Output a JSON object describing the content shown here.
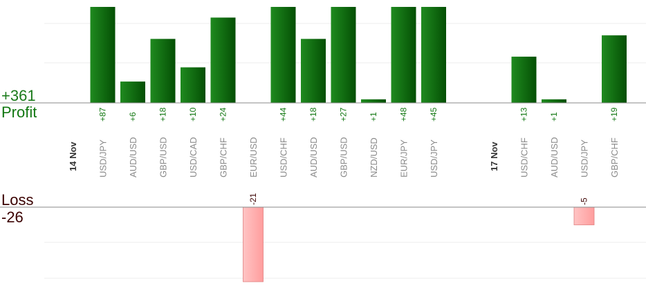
{
  "summary": {
    "profit_total": "+361",
    "profit_label": "Profit",
    "loss_label": "Loss",
    "loss_total": "-26"
  },
  "colors": {
    "profit_bar": "#0b6b0b",
    "profit_text": "#117711",
    "profit_total": "#1a7a1a",
    "loss_bar": "#ffb0b0",
    "loss_bar_stroke": "#e08080",
    "loss_text": "#3a0000",
    "pair_text": "#8a8a8a",
    "date_text": "#333333",
    "axis": "#888888",
    "grid": "#eeeeee"
  },
  "chart_data": {
    "type": "bar",
    "title": "",
    "xlabel": "",
    "ylabel": "",
    "grid": true,
    "categories": [
      {
        "kind": "date",
        "label": "14 Nov"
      },
      {
        "kind": "pair",
        "label": "USD/JPY",
        "profit": 87,
        "profit_label": "+87"
      },
      {
        "kind": "pair",
        "label": "AUD/USD",
        "profit": 6,
        "profit_label": "+6"
      },
      {
        "kind": "pair",
        "label": "GBP/USD",
        "profit": 18,
        "profit_label": "+18"
      },
      {
        "kind": "pair",
        "label": "USD/CAD",
        "profit": 10,
        "profit_label": "+10"
      },
      {
        "kind": "pair",
        "label": "GBP/CHF",
        "profit": 24,
        "profit_label": "+24"
      },
      {
        "kind": "pair",
        "label": "EUR/USD",
        "loss": -21,
        "loss_label": "-21"
      },
      {
        "kind": "pair",
        "label": "USD/CHF",
        "profit": 44,
        "profit_label": "+44"
      },
      {
        "kind": "pair",
        "label": "AUD/USD",
        "profit": 18,
        "profit_label": "+18"
      },
      {
        "kind": "pair",
        "label": "GBP/USD",
        "profit": 27,
        "profit_label": "+27"
      },
      {
        "kind": "pair",
        "label": "NZD/USD",
        "profit": 1,
        "profit_label": "+1"
      },
      {
        "kind": "pair",
        "label": "EUR/JPY",
        "profit": 48,
        "profit_label": "+48"
      },
      {
        "kind": "pair",
        "label": "USD/JPY",
        "profit": 45,
        "profit_label": "+45"
      },
      {
        "kind": "gap"
      },
      {
        "kind": "date",
        "label": "17 Nov"
      },
      {
        "kind": "pair",
        "label": "USD/CHF",
        "profit": 13,
        "profit_label": "+13"
      },
      {
        "kind": "pair",
        "label": "AUD/USD",
        "profit": 1,
        "profit_label": "+1"
      },
      {
        "kind": "pair",
        "label": "USD/JPY",
        "loss": -5,
        "loss_label": "-5"
      },
      {
        "kind": "pair",
        "label": "GBP/CHF",
        "profit": 19,
        "profit_label": "+19"
      }
    ],
    "profit_axis": {
      "ylim": [
        0,
        27
      ]
    },
    "loss_axis": {
      "ylim": [
        -21,
        0
      ]
    }
  }
}
